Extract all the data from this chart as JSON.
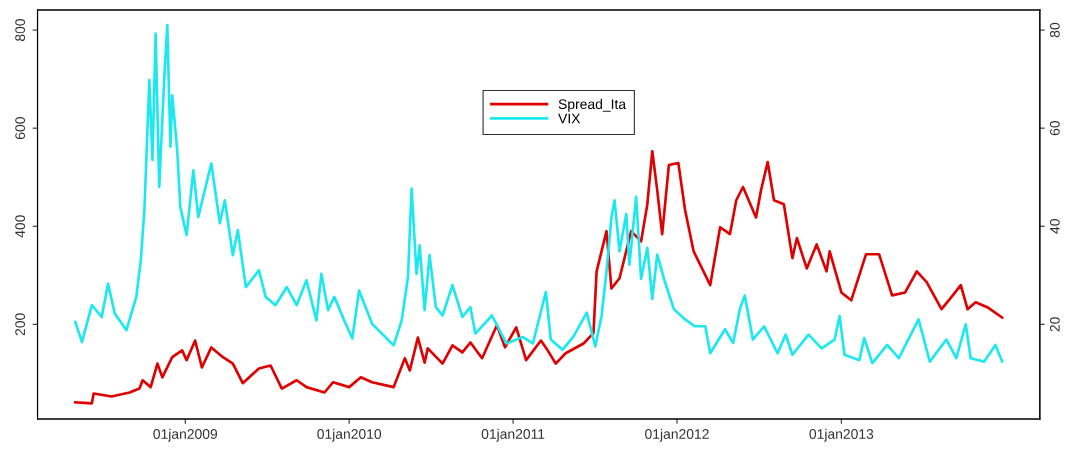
{
  "chart_data": {
    "type": "line",
    "legend": "top",
    "grid": false,
    "line_style": "solid",
    "xlim": [
      "2008-02-07",
      "2014-03-19"
    ],
    "xticks": [
      {
        "value": "2009-01-01",
        "label": "01jan2009"
      },
      {
        "value": "2010-01-01",
        "label": "01jan2010"
      },
      {
        "value": "2011-01-01",
        "label": "01jan2011"
      },
      {
        "value": "2012-01-01",
        "label": "01jan2012"
      },
      {
        "value": "2013-01-01",
        "label": "01jan2013"
      }
    ],
    "ylim": [
      7,
      841
    ],
    "yticks": [
      200,
      400,
      600,
      800
    ],
    "y2lim": [
      0.7,
      84.1
    ],
    "y2ticks": [
      20,
      40,
      60,
      80
    ],
    "series": [
      {
        "name": "Spread_Ita",
        "color": "#e00000",
        "x": [
          "2008-05-01",
          "2008-06-07",
          "2008-06-11",
          "2008-07-21",
          "2008-08-30",
          "2008-09-21",
          "2008-09-28",
          "2008-10-16",
          "2008-10-31",
          "2008-11-11",
          "2008-12-03",
          "2008-12-25",
          "2009-01-04",
          "2009-01-23",
          "2009-02-07",
          "2009-02-28",
          "2009-03-26",
          "2009-04-17",
          "2009-05-09",
          "2009-06-14",
          "2009-07-10",
          "2009-08-04",
          "2009-09-06",
          "2009-09-28",
          "2009-11-07",
          "2009-11-26",
          "2010-01-01",
          "2010-01-27",
          "2010-02-21",
          "2010-04-10",
          "2010-05-05",
          "2010-05-16",
          "2010-06-03",
          "2010-06-18",
          "2010-06-25",
          "2010-07-28",
          "2010-08-19",
          "2010-09-10",
          "2010-09-28",
          "2010-10-24",
          "2010-11-26",
          "2010-12-14",
          "2011-01-08",
          "2011-01-30",
          "2011-03-04",
          "2011-03-19",
          "2011-04-06",
          "2011-04-28",
          "2011-06-07",
          "2011-06-29",
          "2011-07-06",
          "2011-07-28",
          "2011-08-08",
          "2011-08-26",
          "2011-09-21",
          "2011-10-13",
          "2011-10-27",
          "2011-11-07",
          "2011-11-18",
          "2011-11-29",
          "2011-12-14",
          "2012-01-04",
          "2012-01-19",
          "2012-02-07",
          "2012-03-15",
          "2012-04-06",
          "2012-04-28",
          "2012-05-12",
          "2012-05-27",
          "2012-06-25",
          "2012-07-06",
          "2012-07-21",
          "2012-08-04",
          "2012-08-26",
          "2012-09-14",
          "2012-09-24",
          "2012-10-16",
          "2012-11-07",
          "2012-11-29",
          "2012-12-06",
          "2013-01-01",
          "2013-01-23",
          "2013-02-25",
          "2013-03-26",
          "2013-04-24",
          "2013-05-23",
          "2013-06-18",
          "2013-07-10",
          "2013-08-12",
          "2013-08-30",
          "2013-09-24",
          "2013-10-09",
          "2013-10-27",
          "2013-11-22",
          "2013-12-25"
        ],
        "values": [
          41,
          39,
          59,
          53,
          61,
          69,
          86,
          72,
          120,
          92,
          133,
          147,
          127,
          167,
          112,
          153,
          133,
          120,
          80,
          110,
          116,
          69,
          86,
          72,
          61,
          82,
          72,
          92,
          82,
          72,
          131,
          106,
          173,
          122,
          151,
          120,
          157,
          143,
          163,
          131,
          198,
          153,
          194,
          127,
          167,
          147,
          120,
          141,
          161,
          182,
          308,
          390,
          273,
          294,
          390,
          369,
          445,
          553,
          473,
          384,
          525,
          529,
          433,
          349,
          280,
          398,
          384,
          453,
          480,
          418,
          473,
          531,
          453,
          445,
          335,
          376,
          314,
          363,
          308,
          349,
          265,
          249,
          343,
          343,
          259,
          265,
          308,
          286,
          231,
          251,
          280,
          231,
          245,
          235,
          214
        ]
      },
      {
        "name": "VIX",
        "color": "#1ce8f0",
        "axis": "y2",
        "x": [
          "2008-05-01",
          "2008-05-16",
          "2008-06-07",
          "2008-06-29",
          "2008-07-13",
          "2008-07-28",
          "2008-08-23",
          "2008-09-14",
          "2008-09-24",
          "2008-10-02",
          "2008-10-13",
          "2008-10-20",
          "2008-10-27",
          "2008-11-04",
          "2008-11-15",
          "2008-11-22",
          "2008-11-29",
          "2008-12-03",
          "2008-12-14",
          "2008-12-21",
          "2009-01-04",
          "2009-01-19",
          "2009-01-30",
          "2009-02-28",
          "2009-03-19",
          "2009-03-30",
          "2009-04-17",
          "2009-04-28",
          "2009-05-16",
          "2009-06-14",
          "2009-06-29",
          "2009-07-21",
          "2009-08-15",
          "2009-09-06",
          "2009-09-28",
          "2009-10-20",
          "2009-10-31",
          "2009-11-15",
          "2009-11-29",
          "2009-12-21",
          "2010-01-08",
          "2010-01-23",
          "2010-02-21",
          "2010-03-15",
          "2010-04-10",
          "2010-04-28",
          "2010-05-12",
          "2010-05-20",
          "2010-05-31",
          "2010-06-07",
          "2010-06-18",
          "2010-06-29",
          "2010-07-13",
          "2010-07-28",
          "2010-08-19",
          "2010-09-10",
          "2010-09-28",
          "2010-10-09",
          "2010-11-15",
          "2010-12-17",
          "2011-01-23",
          "2011-02-14",
          "2011-03-15",
          "2011-03-26",
          "2011-04-21",
          "2011-05-16",
          "2011-06-14",
          "2011-07-03",
          "2011-07-17",
          "2011-07-28",
          "2011-08-08",
          "2011-08-15",
          "2011-08-26",
          "2011-09-10",
          "2011-09-17",
          "2011-10-02",
          "2011-10-13",
          "2011-10-27",
          "2011-11-07",
          "2011-11-18",
          "2011-12-03",
          "2011-12-25",
          "2012-01-19",
          "2012-02-10",
          "2012-03-04",
          "2012-03-15",
          "2012-04-17",
          "2012-05-05",
          "2012-05-20",
          "2012-05-31",
          "2012-06-18",
          "2012-07-13",
          "2012-08-12",
          "2012-08-30",
          "2012-09-14",
          "2012-10-20",
          "2012-11-18",
          "2012-12-17",
          "2012-12-28",
          "2013-01-08",
          "2013-02-10",
          "2013-02-21",
          "2013-03-11",
          "2013-04-13",
          "2013-05-09",
          "2013-06-22",
          "2013-07-17",
          "2013-08-23",
          "2013-09-14",
          "2013-10-05",
          "2013-10-16",
          "2013-11-15",
          "2013-12-10",
          "2013-12-25"
        ],
        "values": [
          20.5,
          16.4,
          23.9,
          21.5,
          28.3,
          22.2,
          18.8,
          25.6,
          33.1,
          43.3,
          69.8,
          53.5,
          79.3,
          48.0,
          69.8,
          81.0,
          56.2,
          66.7,
          55.5,
          43.9,
          38.2,
          51.4,
          41.9,
          52.8,
          40.6,
          45.3,
          34.1,
          39.2,
          27.6,
          31.0,
          25.6,
          23.9,
          27.6,
          23.9,
          29.0,
          20.8,
          30.3,
          22.9,
          25.6,
          20.8,
          17.1,
          26.9,
          20.1,
          18.1,
          15.7,
          20.8,
          29.7,
          47.7,
          30.3,
          36.1,
          22.9,
          34.1,
          23.5,
          21.8,
          28.0,
          21.5,
          23.5,
          18.1,
          21.8,
          16.1,
          17.4,
          16.1,
          26.6,
          16.9,
          14.8,
          17.6,
          22.4,
          15.5,
          21.7,
          30.7,
          41.8,
          45.3,
          34.9,
          42.5,
          32.1,
          46.0,
          29.3,
          35.6,
          25.2,
          34.2,
          29.3,
          23.1,
          21.0,
          19.6,
          19.6,
          14.1,
          19.0,
          16.2,
          23.1,
          25.9,
          16.9,
          19.6,
          14.1,
          17.9,
          13.8,
          17.9,
          15.1,
          16.9,
          21.7,
          13.8,
          12.7,
          17.2,
          12.1,
          15.8,
          13.1,
          21.0,
          12.4,
          16.9,
          13.1,
          20.0,
          13.1,
          12.4,
          15.8,
          12.4
        ]
      }
    ]
  }
}
